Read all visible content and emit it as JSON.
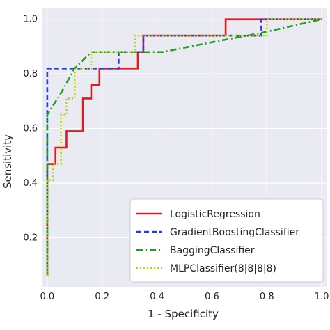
{
  "chart_data": {
    "type": "line",
    "title": "",
    "xlabel": "1 - Specificity",
    "ylabel": "Sensitivity",
    "xlim": [
      -0.02,
      1.02
    ],
    "ylim": [
      0.02,
      1.04
    ],
    "xticks": [
      0.0,
      0.2,
      0.4,
      0.6,
      0.8,
      1.0
    ],
    "yticks": [
      0.2,
      0.4,
      0.6,
      0.8,
      1.0
    ],
    "xtick_labels": [
      "0.0",
      "0.2",
      "0.4",
      "0.6",
      "0.8",
      "1.0"
    ],
    "ytick_labels": [
      "0.2",
      "0.4",
      "0.6",
      "0.8",
      "1.0"
    ],
    "background": "#eaeaf2",
    "grid": true,
    "grid_color": "#ffffff",
    "legend_position": "lower-right",
    "series": [
      {
        "name": "LogisticRegression",
        "color": "#e31a1c",
        "dash": "solid",
        "x": [
          0.0,
          0.0,
          0.0,
          0.03,
          0.03,
          0.07,
          0.07,
          0.13,
          0.13,
          0.16,
          0.16,
          0.19,
          0.19,
          0.33,
          0.33,
          0.35,
          0.35,
          0.65,
          0.65,
          1.0
        ],
        "y": [
          0.06,
          0.41,
          0.47,
          0.47,
          0.53,
          0.53,
          0.59,
          0.59,
          0.71,
          0.71,
          0.76,
          0.76,
          0.82,
          0.82,
          0.88,
          0.88,
          0.94,
          0.94,
          1.0,
          1.0
        ]
      },
      {
        "name": "GradientBoostingClassifier",
        "color": "#2b3fcf",
        "dash": "dashed",
        "x": [
          0.0,
          0.0,
          0.26,
          0.26,
          0.35,
          0.35,
          0.78,
          0.78,
          1.0
        ],
        "y": [
          0.06,
          0.82,
          0.82,
          0.88,
          0.88,
          0.94,
          0.94,
          1.0,
          1.0
        ]
      },
      {
        "name": "BaggingClassifier",
        "color": "#1e9e1e",
        "dash": "dashdot",
        "x": [
          0.0,
          0.0,
          0.05,
          0.1,
          0.16,
          0.32,
          0.42,
          0.57,
          0.78,
          1.0
        ],
        "y": [
          0.06,
          0.65,
          0.73,
          0.82,
          0.88,
          0.88,
          0.88,
          0.91,
          0.95,
          1.0
        ]
      },
      {
        "name": "MLPClassifier(8|8|8|8)",
        "color": "#b8d600",
        "dash": "dotted",
        "x": [
          0.0,
          0.0,
          0.02,
          0.02,
          0.05,
          0.05,
          0.07,
          0.07,
          0.1,
          0.1,
          0.16,
          0.16,
          0.32,
          0.32,
          0.8,
          0.8,
          1.0
        ],
        "y": [
          0.06,
          0.41,
          0.41,
          0.47,
          0.47,
          0.65,
          0.65,
          0.71,
          0.71,
          0.82,
          0.82,
          0.88,
          0.88,
          0.94,
          0.94,
          1.0,
          1.0
        ]
      }
    ]
  }
}
